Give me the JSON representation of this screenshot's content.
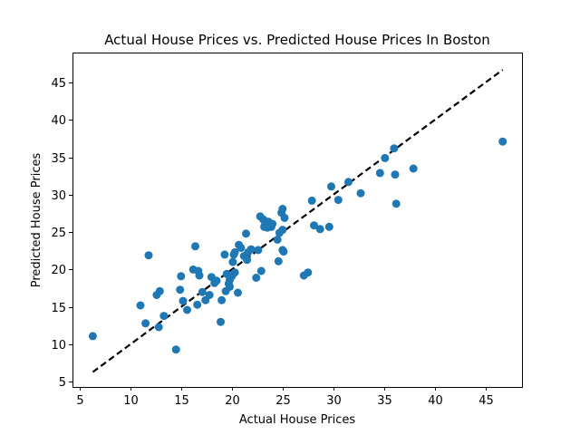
{
  "chart_data": {
    "type": "scatter",
    "title": "Actual House Prices vs. Predicted House Prices In Boston",
    "xlabel": "Actual House Prices",
    "ylabel": "Predicted House Prices",
    "xlim": [
      4.3,
      48.6
    ],
    "ylim": [
      4.3,
      49.0
    ],
    "xticks": [
      5,
      10,
      15,
      20,
      25,
      30,
      35,
      40,
      45
    ],
    "yticks": [
      5,
      10,
      15,
      20,
      25,
      30,
      35,
      40,
      45
    ],
    "point_color": "#1f77b4",
    "grid": false,
    "reference_line": {
      "style": "dashed",
      "color": "#000000",
      "from": [
        6.3,
        6.3
      ],
      "to": [
        46.7,
        46.7
      ]
    },
    "series": [
      {
        "points": [
          [
            6.3,
            11.1
          ],
          [
            11.0,
            15.2
          ],
          [
            11.5,
            12.8
          ],
          [
            11.8,
            21.9
          ],
          [
            12.6,
            16.6
          ],
          [
            12.8,
            12.3
          ],
          [
            12.9,
            17.1
          ],
          [
            13.3,
            13.8
          ],
          [
            14.5,
            9.3
          ],
          [
            14.9,
            17.3
          ],
          [
            15.0,
            19.1
          ],
          [
            15.2,
            15.8
          ],
          [
            15.6,
            14.6
          ],
          [
            16.2,
            20.0
          ],
          [
            16.4,
            23.1
          ],
          [
            16.6,
            15.3
          ],
          [
            16.7,
            19.8
          ],
          [
            16.8,
            19.2
          ],
          [
            17.1,
            17.0
          ],
          [
            17.4,
            15.9
          ],
          [
            17.8,
            16.6
          ],
          [
            18.0,
            19.0
          ],
          [
            18.3,
            18.2
          ],
          [
            18.5,
            18.5
          ],
          [
            18.9,
            13.0
          ],
          [
            19.0,
            15.9
          ],
          [
            19.3,
            22.0
          ],
          [
            19.4,
            17.1
          ],
          [
            19.5,
            19.4
          ],
          [
            19.7,
            18.1
          ],
          [
            19.8,
            18.6
          ],
          [
            19.8,
            17.7
          ],
          [
            20.0,
            19.1
          ],
          [
            20.1,
            21.0
          ],
          [
            20.2,
            22.0
          ],
          [
            20.3,
            22.3
          ],
          [
            20.3,
            19.6
          ],
          [
            20.6,
            16.9
          ],
          [
            20.7,
            23.3
          ],
          [
            20.9,
            22.9
          ],
          [
            21.2,
            21.8
          ],
          [
            21.4,
            24.8
          ],
          [
            21.5,
            21.3
          ],
          [
            21.6,
            22.3
          ],
          [
            21.9,
            22.7
          ],
          [
            22.4,
            18.9
          ],
          [
            22.6,
            22.6
          ],
          [
            22.8,
            27.1
          ],
          [
            22.9,
            19.8
          ],
          [
            23.1,
            26.7
          ],
          [
            23.2,
            25.7
          ],
          [
            23.3,
            26.1
          ],
          [
            23.5,
            25.6
          ],
          [
            23.6,
            26.4
          ],
          [
            23.9,
            25.7
          ],
          [
            24.0,
            26.1
          ],
          [
            24.5,
            24.0
          ],
          [
            24.6,
            21.1
          ],
          [
            24.7,
            24.9
          ],
          [
            24.9,
            27.6
          ],
          [
            25.0,
            28.1
          ],
          [
            25.0,
            25.3
          ],
          [
            25.0,
            22.6
          ],
          [
            25.1,
            22.4
          ],
          [
            25.2,
            26.9
          ],
          [
            27.1,
            19.2
          ],
          [
            27.5,
            19.6
          ],
          [
            27.9,
            29.2
          ],
          [
            28.1,
            25.9
          ],
          [
            28.7,
            25.4
          ],
          [
            29.6,
            25.7
          ],
          [
            29.8,
            31.1
          ],
          [
            30.5,
            29.3
          ],
          [
            31.5,
            31.7
          ],
          [
            32.7,
            30.2
          ],
          [
            34.6,
            32.9
          ],
          [
            35.1,
            34.9
          ],
          [
            36.0,
            36.2
          ],
          [
            36.1,
            32.7
          ],
          [
            36.2,
            28.8
          ],
          [
            37.9,
            33.5
          ],
          [
            46.7,
            37.1
          ]
        ]
      }
    ]
  }
}
